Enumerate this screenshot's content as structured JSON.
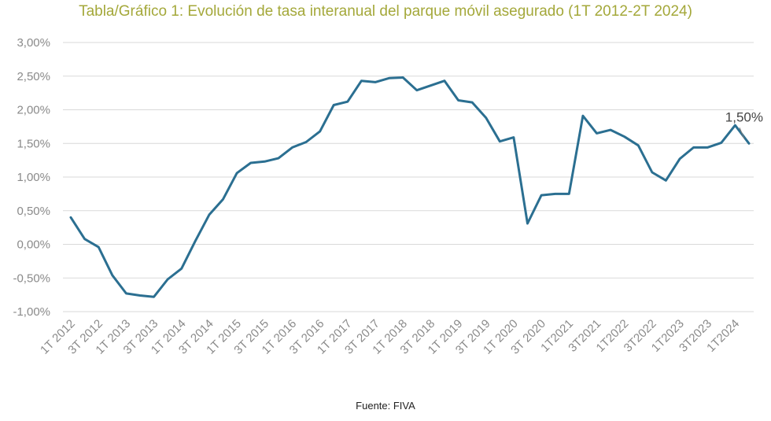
{
  "title": "Tabla/Gráfico 1: Evolución de tasa interanual del parque móvil asegurado (1T 2012-2T 2024)",
  "source": "Fuente: FIVA",
  "colors": {
    "title": "#a4a83a",
    "line": "#2b6f91",
    "grid": "#d9d9d9",
    "tick": "#8a8a8a"
  },
  "chart_data": {
    "type": "line",
    "title": "Tabla/Gráfico 1: Evolución de tasa interanual del parque móvil asegurado (1T 2012-2T 2024)",
    "xlabel": "",
    "ylabel": "",
    "ylim": [
      -1.0,
      3.0
    ],
    "y_ticks": [
      "3,00%",
      "2,50%",
      "2,00%",
      "1,50%",
      "1,00%",
      "0,50%",
      "0,00%",
      "-0,50%",
      "-1,00%"
    ],
    "y_tick_values": [
      3.0,
      2.5,
      2.0,
      1.5,
      1.0,
      0.5,
      0.0,
      -0.5,
      -1.0
    ],
    "x_tick_labels": [
      "1T 2012",
      "3T 2012",
      "1T 2013",
      "3T 2013",
      "1T 2014",
      "3T 2014",
      "1T 2015",
      "3T 2015",
      "1T 2016",
      "3T 2016",
      "1T 2017",
      "3T 2017",
      "1T 2018",
      "3T 2018",
      "1T 2019",
      "3T 2019",
      "1T 2020",
      "3T 2020",
      "1T2021",
      "3T2021",
      "1T2022",
      "3T2022",
      "1T2023",
      "3T2023",
      "1T2024"
    ],
    "grid": true,
    "legend": "none",
    "series": [
      {
        "values": [
          0.4,
          0.08,
          -0.04,
          -0.46,
          -0.73,
          -0.76,
          -0.78,
          -0.52,
          -0.36,
          0.05,
          0.44,
          0.67,
          1.06,
          1.21,
          1.23,
          1.28,
          1.44,
          1.52,
          1.68,
          2.07,
          2.12,
          2.43,
          2.41,
          2.47,
          2.48,
          2.29,
          2.36,
          2.43,
          2.14,
          2.11,
          1.88,
          1.53,
          1.59,
          0.31,
          0.73,
          0.75,
          0.75,
          1.91,
          1.65,
          1.7,
          1.6,
          1.47,
          1.07,
          0.95,
          1.27,
          1.44,
          1.44,
          1.51,
          1.77,
          1.5
        ]
      }
    ],
    "annotations": [
      {
        "index": 49,
        "text": "1,50%"
      }
    ]
  }
}
